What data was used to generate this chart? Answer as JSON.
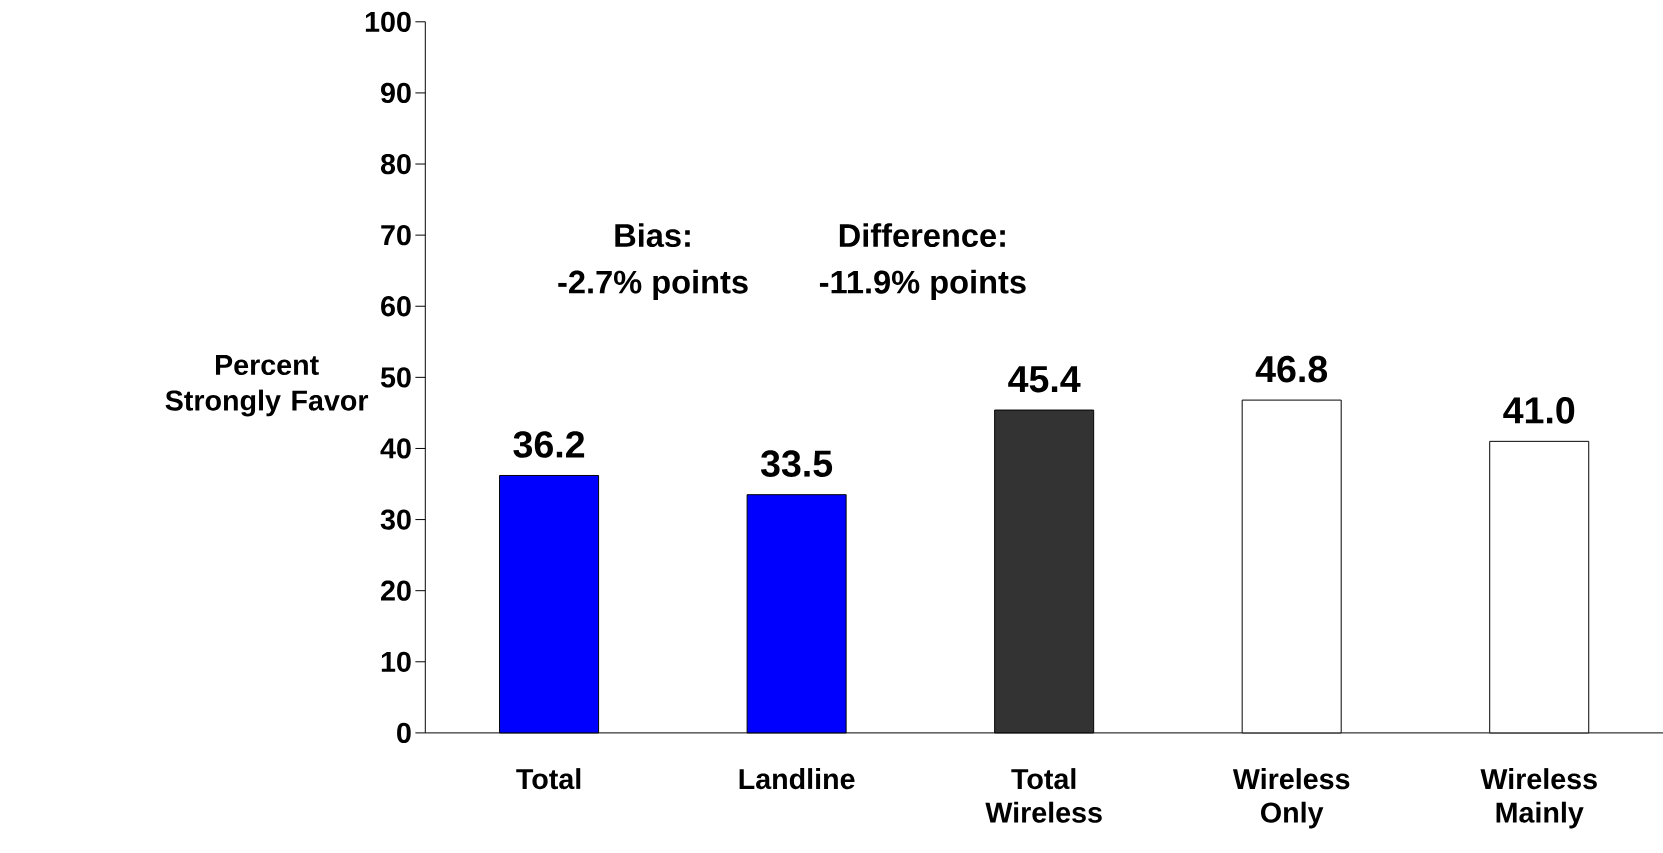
{
  "chart_data": {
    "type": "bar",
    "ylabel": "Percent Strongly Favor",
    "categories": [
      "Total",
      "Landline",
      "Total Wireless",
      "Wireless Only",
      "Wireless Mainly"
    ],
    "values": [
      36.2,
      33.5,
      45.4,
      46.8,
      41.0
    ],
    "colors": [
      "#0000ff",
      "#0000ff",
      "#333333",
      "#ffffff",
      "#ffffff"
    ],
    "ylim": [
      0,
      100
    ],
    "yticks": [
      0,
      10,
      20,
      30,
      40,
      50,
      60,
      70,
      80,
      90,
      100
    ],
    "value_labels": [
      "36.2",
      "33.5",
      "45.4",
      "46.8",
      "41.0"
    ],
    "grid": false,
    "annotations": [
      "Bias:",
      "-2.7% points",
      "Difference:",
      "-11.9% points"
    ]
  }
}
